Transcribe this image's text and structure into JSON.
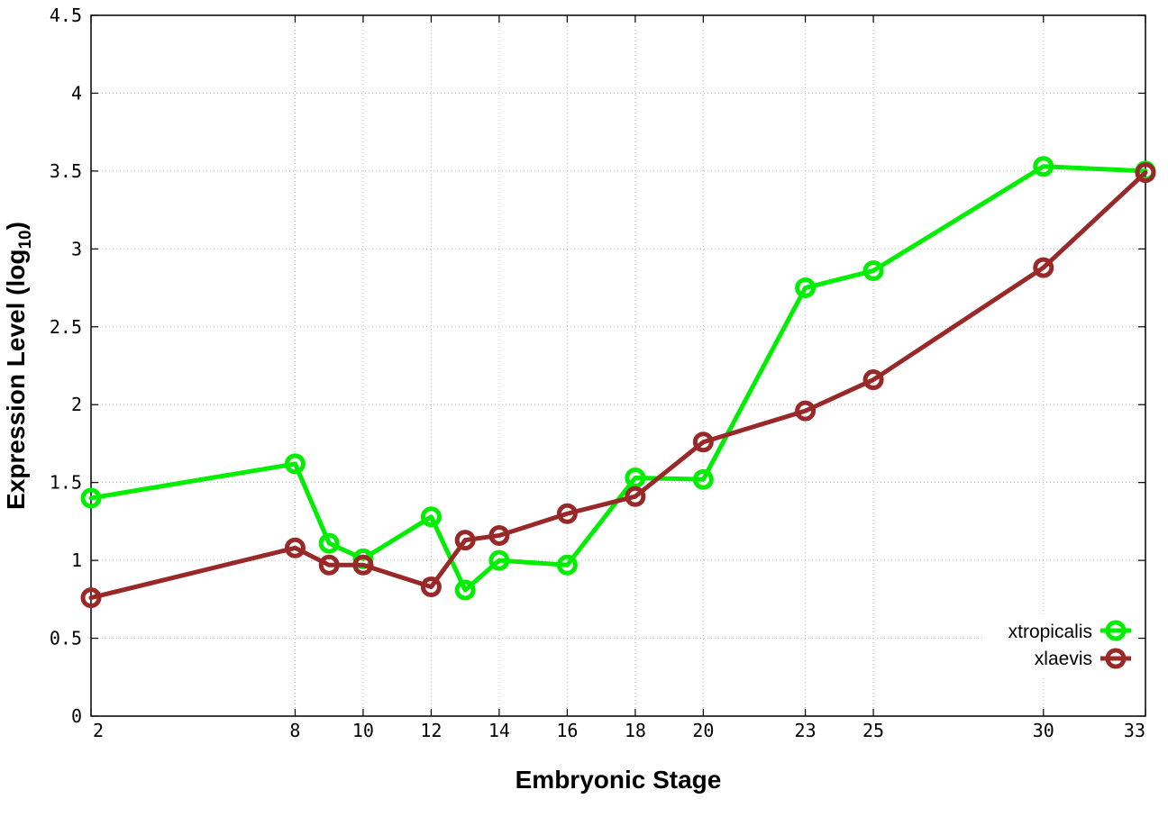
{
  "chart_data": {
    "type": "line",
    "xlabel": "Embryonic Stage",
    "ylabel": {
      "main": "Expression Level (log",
      "subscript": "10",
      "suffix": ")"
    },
    "x_ticks": [
      2,
      8,
      10,
      12,
      14,
      16,
      18,
      20,
      23,
      25,
      30,
      33
    ],
    "x_tick_labels": [
      "2",
      "8",
      "10",
      "12",
      "14",
      "16",
      "18",
      "20",
      "23",
      "25",
      "30",
      "33"
    ],
    "y_ticks": [
      0,
      0.5,
      1,
      1.5,
      2,
      2.5,
      3,
      3.5,
      4,
      4.5
    ],
    "y_tick_labels": [
      "0",
      "0.5",
      "1",
      "1.5",
      "2",
      "2.5",
      "3",
      "3.5",
      "4",
      "4.5"
    ],
    "xlim": [
      2,
      33
    ],
    "ylim": [
      0,
      4.5
    ],
    "grid": true,
    "legend_position": "bottom-right",
    "series": [
      {
        "name": "xtropicalis",
        "color": "#00ee00",
        "x": [
          2,
          8,
          9,
          10,
          12,
          13,
          14,
          16,
          18,
          20,
          23,
          25,
          30,
          33
        ],
        "y": [
          1.4,
          1.62,
          1.11,
          1.01,
          1.28,
          0.81,
          1.0,
          0.97,
          1.53,
          1.52,
          2.75,
          2.86,
          3.53,
          3.5
        ]
      },
      {
        "name": "xlaevis",
        "color": "#992929",
        "x": [
          2,
          8,
          9,
          10,
          12,
          13,
          14,
          16,
          18,
          20,
          23,
          25,
          30,
          33
        ],
        "y": [
          0.76,
          1.08,
          0.97,
          0.97,
          0.83,
          1.13,
          1.16,
          1.3,
          1.41,
          1.76,
          1.96,
          2.16,
          2.88,
          3.49
        ]
      }
    ]
  }
}
